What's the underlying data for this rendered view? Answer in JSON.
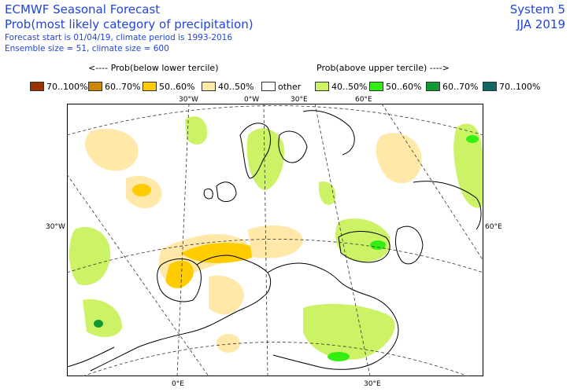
{
  "header": {
    "title": "ECMWF Seasonal Forecast",
    "subtitle": "Prob(most likely category of precipitation)",
    "line1": "Forecast start is 01/04/19, climate period is 1993-2016",
    "line2": "Ensemble size = 51, climate size = 600",
    "system": "System 5",
    "season": "JJA 2019"
  },
  "legend": {
    "below_heading": "<---- Prob(below lower tercile)",
    "above_heading": "Prob(above upper tercile) ---->",
    "items": [
      {
        "label": "70..100%",
        "color": "#993300"
      },
      {
        "label": "60..70%",
        "color": "#cc8800"
      },
      {
        "label": "50..60%",
        "color": "#ffcc00"
      },
      {
        "label": "40..50%",
        "color": "#ffe8a8"
      },
      {
        "label": "other",
        "color": "#ffffff"
      },
      {
        "label": "40..50%",
        "color": "#ccf266"
      },
      {
        "label": "50..60%",
        "color": "#33ee11"
      },
      {
        "label": "60..70%",
        "color": "#119933"
      },
      {
        "label": "70..100%",
        "color": "#116666"
      }
    ]
  },
  "map": {
    "graticule_labels": {
      "top": [
        "30°W",
        "0°W",
        "30°E",
        "60°E"
      ],
      "left": "30°W",
      "right": "60°E",
      "bottom": [
        "0°E",
        "30°E"
      ]
    },
    "fill_colors": {
      "dry_light": "#ffe8a8",
      "dry_mid": "#ffcc00",
      "wet_light": "#ccf266",
      "wet_mid": "#33ee11",
      "wet_dark": "#119933"
    }
  }
}
